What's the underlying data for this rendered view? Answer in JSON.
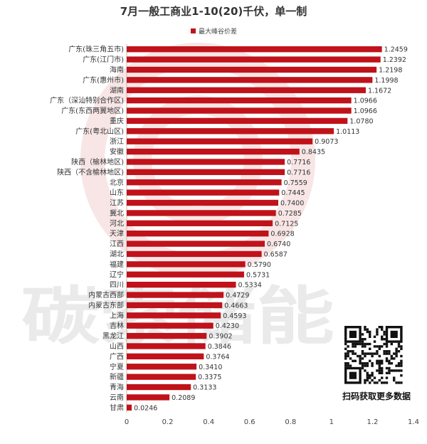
{
  "chart_data": {
    "type": "bar",
    "orientation": "horizontal",
    "title": "7月一般工商业1-10(20)千伏，单一制",
    "legend": "最大峰谷价差",
    "legend_position": "top",
    "bar_color": "#c0121a",
    "xlim": [
      0,
      1.4
    ],
    "xticks": [
      "0",
      "0.2",
      "0.4",
      "0.6",
      "0.8",
      "1",
      "1.2",
      "1.4"
    ],
    "grid": false,
    "categories": [
      "广东(珠三角五市)",
      "广东(江门市)",
      "海南",
      "广东(惠州市)",
      "湖南",
      "广东（深汕特别合作区)",
      "广东(东西两翼地区)",
      "重庆",
      "广东(粤北山区)",
      "浙江",
      "安徽",
      "陕西（榆林地区)",
      "陕西（不含榆林地区)",
      "北京",
      "山东",
      "江苏",
      "冀北",
      "河北",
      "天津",
      "江西",
      "湖北",
      "福建",
      "辽宁",
      "四川",
      "内蒙古西部",
      "内蒙古东部",
      "上海",
      "吉林",
      "黑龙江",
      "山西",
      "广西",
      "宁夏",
      "新疆",
      "青海",
      "云南",
      "甘肃"
    ],
    "values": [
      1.2459,
      1.2392,
      1.2198,
      1.1998,
      1.1672,
      1.0966,
      1.0966,
      1.078,
      1.0113,
      0.9073,
      0.8435,
      0.7716,
      0.7716,
      0.7559,
      0.7445,
      0.74,
      0.7285,
      0.7125,
      0.6928,
      0.674,
      0.6587,
      0.579,
      0.5731,
      0.5334,
      0.4729,
      0.4663,
      0.4593,
      0.423,
      0.3902,
      0.3846,
      0.3764,
      0.341,
      0.3375,
      0.3133,
      0.2089,
      0.0246
    ],
    "value_labels": [
      "1.2459",
      "1.2392",
      "1.2198",
      "1.1998",
      "1.1672",
      "1.0966",
      "1.0966",
      "1.0780",
      "1.0113",
      "0.9073",
      "0.8435",
      "0.7716",
      "0.7716",
      "0.7559",
      "0.7445",
      "0.7400",
      "0.7285",
      "0.7125",
      "0.6928",
      "0.6740",
      "0.6587",
      "0.5790",
      "0.5731",
      "0.5334",
      "0.4729",
      "0.4663",
      "0.4593",
      "0.4230",
      "0.3902",
      "0.3846",
      "0.3764",
      "0.3410",
      "0.3375",
      "0.3133",
      "0.2089",
      "0.0246"
    ]
  },
  "watermark": {
    "text": "碳索储能",
    "color": "#d9d9d9",
    "logo_color": "#f0c9c9"
  },
  "qr": {
    "caption": "扫码获取更多数据"
  }
}
